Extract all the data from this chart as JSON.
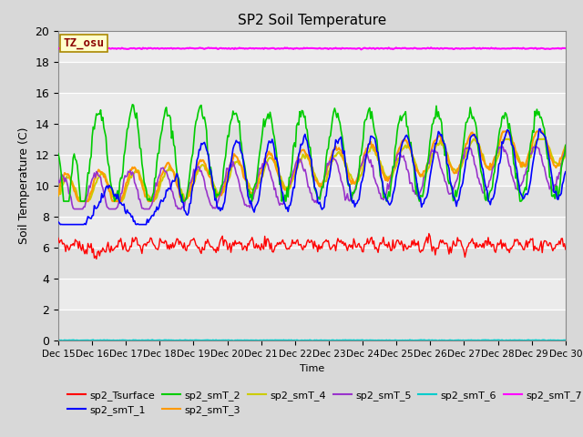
{
  "title": "SP2 Soil Temperature",
  "ylabel": "Soil Temperature (C)",
  "xlabel": "Time",
  "ylim": [
    0,
    20
  ],
  "yticks": [
    0,
    2,
    4,
    6,
    8,
    10,
    12,
    14,
    16,
    18,
    20
  ],
  "background_color": "#d8d8d8",
  "plot_bg_light": "#e8e8e8",
  "plot_bg_dark": "#d8d8d8",
  "tz_label": "TZ_osu",
  "tz_box_color": "#ffffcc",
  "tz_text_color": "#8b0000",
  "x_tick_labels": [
    "Dec 15",
    "Dec 16",
    "Dec 17",
    "Dec 18",
    "Dec 19",
    "Dec 20",
    "Dec 21",
    "Dec 22",
    "Dec 23",
    "Dec 24",
    "Dec 25",
    "Dec 26",
    "Dec 27",
    "Dec 28",
    "Dec 29",
    "Dec 30"
  ],
  "series": {
    "sp2_Tsurface": {
      "color": "#ff0000",
      "lw": 1.0
    },
    "sp2_smT_1": {
      "color": "#0000ff",
      "lw": 1.2
    },
    "sp2_smT_2": {
      "color": "#00cc00",
      "lw": 1.2
    },
    "sp2_smT_3": {
      "color": "#ff9900",
      "lw": 1.5
    },
    "sp2_smT_4": {
      "color": "#cccc00",
      "lw": 1.5
    },
    "sp2_smT_5": {
      "color": "#9933cc",
      "lw": 1.2
    },
    "sp2_smT_6": {
      "color": "#00cccc",
      "lw": 1.5
    },
    "sp2_smT_7": {
      "color": "#ff00ff",
      "lw": 1.5
    }
  }
}
